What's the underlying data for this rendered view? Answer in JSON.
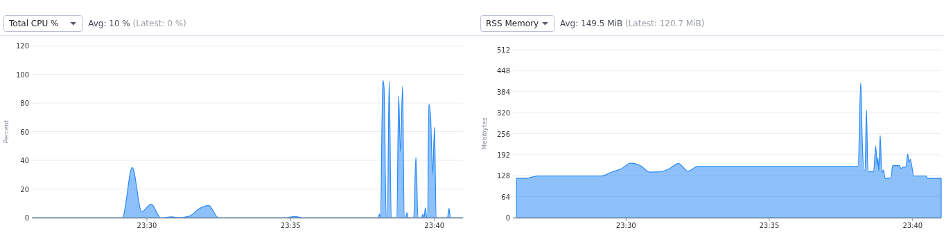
{
  "chart_data": [
    {
      "type": "area",
      "title": "Total CPU %",
      "subtitle": "Avg: 10 %",
      "annotations": [
        "(Latest: 0 %)"
      ],
      "ylabel": "Percent",
      "color": "#2a8af6",
      "grid": "y",
      "xlim": [
        23.4333,
        23.6833
      ],
      "xticks": [
        {
          "value": 23.5,
          "label": "23:30"
        },
        {
          "value": 23.5833,
          "label": "23:35"
        },
        {
          "value": 23.6667,
          "label": "23:40"
        }
      ],
      "ylim": [
        0,
        120
      ],
      "yticks": [
        0,
        20,
        40,
        60,
        80,
        100,
        120
      ],
      "x": [
        23.434,
        23.4858,
        23.4915,
        23.497,
        23.5025,
        23.508,
        23.5142,
        23.5193,
        23.5245,
        23.5307,
        23.5358,
        23.5415,
        23.5812,
        23.5857,
        23.59,
        23.6343,
        23.6348,
        23.6355,
        23.6368,
        23.6375,
        23.6388,
        23.6395,
        23.6405,
        23.6417,
        23.645,
        23.646,
        23.647,
        23.6483,
        23.6492,
        23.65,
        23.6508,
        23.6515,
        23.6547,
        23.656,
        23.6572,
        23.6592,
        23.66,
        23.6607,
        23.6615,
        23.6623,
        23.6628,
        23.6635,
        23.6645,
        23.6657,
        23.6668,
        23.6677,
        23.6743,
        23.6752,
        23.676,
        23.6833
      ],
      "values": [
        0,
        0,
        35,
        4,
        9.5,
        0,
        0.5,
        0,
        1,
        6.5,
        8.5,
        0,
        0,
        0.8,
        0,
        0,
        2.5,
        0,
        96,
        91,
        0,
        0,
        95,
        0,
        0,
        85,
        46,
        91.5,
        0,
        0,
        3.5,
        0,
        0,
        42,
        0,
        0,
        2.5,
        0,
        7,
        0,
        0,
        79,
        71,
        30,
        63,
        0,
        0,
        6.5,
        0,
        0
      ]
    },
    {
      "type": "area",
      "title": "RSS Memory",
      "subtitle": "Avg: 149.5 MiB",
      "annotations": [
        "(Latest: 120.7 MiB)"
      ],
      "ylabel": "Mebibytes",
      "color": "#2a8af6",
      "grid": "y",
      "xlim": [
        23.4342,
        23.6833
      ],
      "xticks": [
        {
          "value": 23.5,
          "label": "23:30"
        },
        {
          "value": 23.5833,
          "label": "23:35"
        },
        {
          "value": 23.6667,
          "label": "23:40"
        }
      ],
      "ylim": [
        0,
        512
      ],
      "yticks": [
        0,
        64,
        128,
        192,
        256,
        320,
        384,
        448,
        512
      ],
      "x": [
        23.4363,
        23.442,
        23.4482,
        23.4855,
        23.4917,
        23.4972,
        23.5027,
        23.5082,
        23.5138,
        23.5195,
        23.5248,
        23.5305,
        23.536,
        23.5417,
        23.635,
        23.6365,
        23.6373,
        23.6383,
        23.639,
        23.6398,
        23.6407,
        23.644,
        23.6452,
        23.646,
        23.6465,
        23.647,
        23.6478,
        23.6487,
        23.6497,
        23.6507,
        23.6527,
        23.6542,
        23.655,
        23.6558,
        23.6588,
        23.66,
        23.6612,
        23.6628,
        23.6638,
        23.6645,
        23.6653,
        23.6663,
        23.6672,
        23.6745,
        23.6753,
        23.6833
      ],
      "values": [
        120,
        120,
        127,
        127,
        139,
        149,
        166,
        159,
        139,
        140,
        148,
        165,
        142,
        156,
        156,
        411,
        251,
        143,
        143,
        329,
        140,
        140,
        219,
        160,
        183,
        141,
        251,
        137,
        145,
        120,
        120,
        123,
        158,
        159,
        159,
        150,
        154,
        154,
        194,
        169,
        178,
        154,
        127,
        127,
        120,
        120
      ]
    }
  ]
}
